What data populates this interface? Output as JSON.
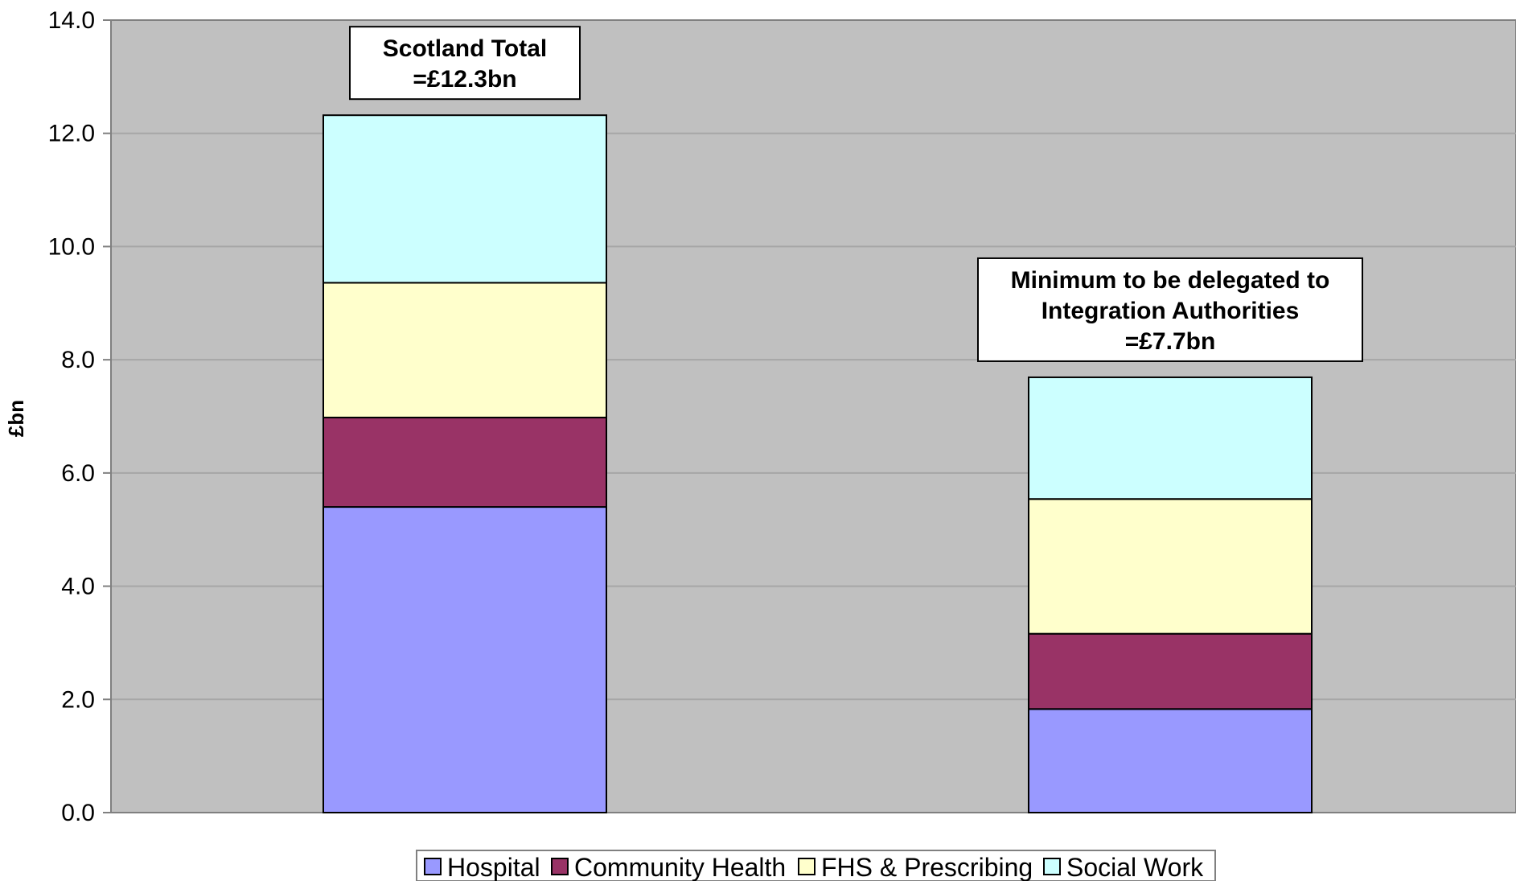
{
  "chart_data": {
    "type": "bar",
    "stacked": true,
    "title": "",
    "xlabel": "",
    "ylabel": "£bn",
    "ylim": [
      0,
      14
    ],
    "yticks": [
      "0.0",
      "2.0",
      "4.0",
      "6.0",
      "8.0",
      "10.0",
      "12.0",
      "14.0"
    ],
    "grid": true,
    "legend_position": "bottom",
    "categories": [
      "",
      ""
    ],
    "series": [
      {
        "name": "Hospital",
        "color": "#9999ff",
        "values": [
          5.4,
          1.83
        ]
      },
      {
        "name": "Community Health",
        "color": "#993366",
        "values": [
          1.58,
          1.33
        ]
      },
      {
        "name": "FHS & Prescribing",
        "color": "#ffffcc",
        "values": [
          2.38,
          2.38
        ]
      },
      {
        "name": "Social Work",
        "color": "#ccffff",
        "values": [
          2.96,
          2.15
        ]
      }
    ],
    "annotations": [
      {
        "lines": [
          "Scotland Total",
          "=£12.3bn"
        ]
      },
      {
        "lines": [
          "Minimum to be delegated to",
          "Integration Authorities",
          "=£7.7bn"
        ]
      }
    ]
  },
  "colors": {
    "plot_background": "#c0c0c0",
    "gridline": "#a6a6a6",
    "page_background": "#ffffff"
  }
}
